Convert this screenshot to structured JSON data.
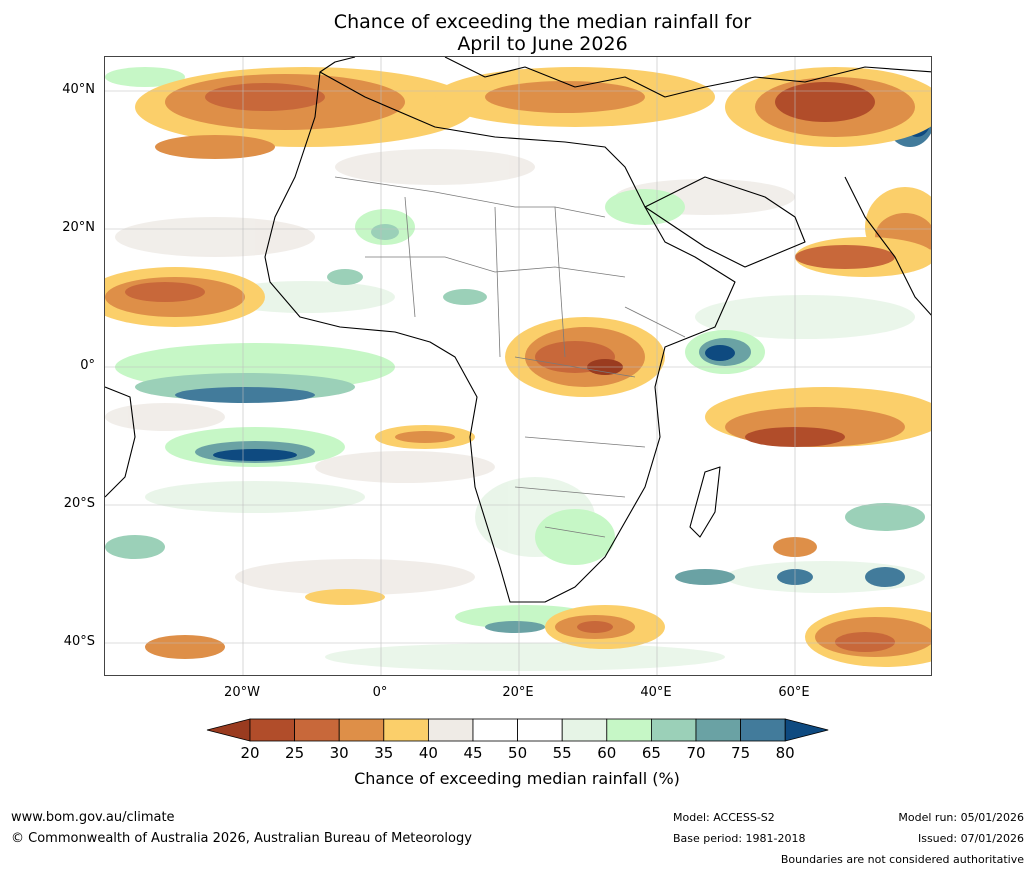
{
  "title": {
    "line1": "Chance of exceeding the median rainfall for",
    "line2": "April to June 2026"
  },
  "map": {
    "lat_labels": [
      "40°N",
      "20°N",
      "0°",
      "20°S",
      "40°S"
    ],
    "lon_labels": [
      "20°W",
      "0°",
      "20°E",
      "40°E",
      "60°E"
    ],
    "lon_range": [
      -40,
      80
    ],
    "lat_range": [
      -45,
      45
    ]
  },
  "colorbar": {
    "ticks": [
      "20",
      "25",
      "30",
      "35",
      "40",
      "45",
      "50",
      "55",
      "60",
      "65",
      "70",
      "75",
      "80"
    ],
    "colors": [
      "#9a3b1f",
      "#b14d2a",
      "#c8683a",
      "#de8f48",
      "#fbcf6a",
      "#efebe6",
      "#ffffff",
      "#ffffff",
      "#e6f4e6",
      "#c6f7c6",
      "#9bd0b8",
      "#6aa2a4",
      "#427b9b",
      "#0e4a80"
    ],
    "label": "Chance of exceeding median rainfall (%)"
  },
  "footer": {
    "website": "www.bom.gov.au/climate",
    "copyright": "© Commonwealth of Australia 2026, Australian Bureau of Meteorology",
    "model": "Model: ACCESS-S2",
    "base_period": "Base period: 1981-2018",
    "model_run": "Model run: 05/01/2026",
    "issued": "Issued: 07/01/2026",
    "disclaimer": "Boundaries are not considered authoritative"
  }
}
